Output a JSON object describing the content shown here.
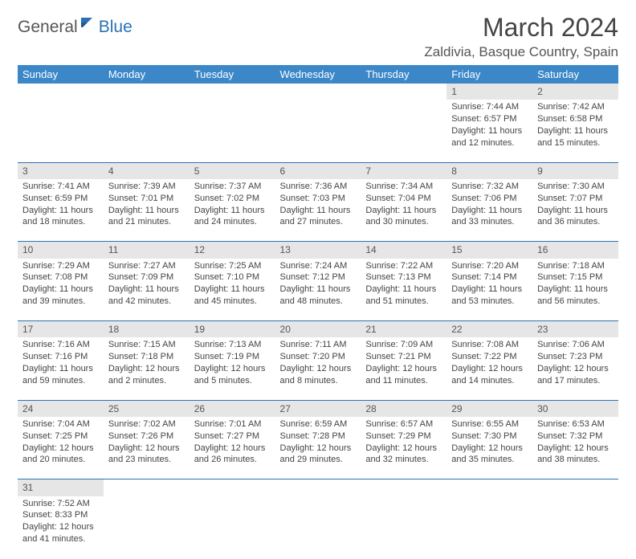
{
  "logo": {
    "part1": "General",
    "part2": "Blue"
  },
  "title": "March 2024",
  "location": "Zaldivia, Basque Country, Spain",
  "day_headers": [
    "Sunday",
    "Monday",
    "Tuesday",
    "Wednesday",
    "Thursday",
    "Friday",
    "Saturday"
  ],
  "colors": {
    "header_bg": "#3b87c8",
    "header_text": "#ffffff",
    "daynum_bg": "#e6e6e6",
    "border": "#2a72b5",
    "text": "#444444"
  },
  "weeks": [
    [
      null,
      null,
      null,
      null,
      null,
      {
        "n": "1",
        "sr": "Sunrise: 7:44 AM",
        "ss": "Sunset: 6:57 PM",
        "dl1": "Daylight: 11 hours",
        "dl2": "and 12 minutes."
      },
      {
        "n": "2",
        "sr": "Sunrise: 7:42 AM",
        "ss": "Sunset: 6:58 PM",
        "dl1": "Daylight: 11 hours",
        "dl2": "and 15 minutes."
      }
    ],
    [
      {
        "n": "3",
        "sr": "Sunrise: 7:41 AM",
        "ss": "Sunset: 6:59 PM",
        "dl1": "Daylight: 11 hours",
        "dl2": "and 18 minutes."
      },
      {
        "n": "4",
        "sr": "Sunrise: 7:39 AM",
        "ss": "Sunset: 7:01 PM",
        "dl1": "Daylight: 11 hours",
        "dl2": "and 21 minutes."
      },
      {
        "n": "5",
        "sr": "Sunrise: 7:37 AM",
        "ss": "Sunset: 7:02 PM",
        "dl1": "Daylight: 11 hours",
        "dl2": "and 24 minutes."
      },
      {
        "n": "6",
        "sr": "Sunrise: 7:36 AM",
        "ss": "Sunset: 7:03 PM",
        "dl1": "Daylight: 11 hours",
        "dl2": "and 27 minutes."
      },
      {
        "n": "7",
        "sr": "Sunrise: 7:34 AM",
        "ss": "Sunset: 7:04 PM",
        "dl1": "Daylight: 11 hours",
        "dl2": "and 30 minutes."
      },
      {
        "n": "8",
        "sr": "Sunrise: 7:32 AM",
        "ss": "Sunset: 7:06 PM",
        "dl1": "Daylight: 11 hours",
        "dl2": "and 33 minutes."
      },
      {
        "n": "9",
        "sr": "Sunrise: 7:30 AM",
        "ss": "Sunset: 7:07 PM",
        "dl1": "Daylight: 11 hours",
        "dl2": "and 36 minutes."
      }
    ],
    [
      {
        "n": "10",
        "sr": "Sunrise: 7:29 AM",
        "ss": "Sunset: 7:08 PM",
        "dl1": "Daylight: 11 hours",
        "dl2": "and 39 minutes."
      },
      {
        "n": "11",
        "sr": "Sunrise: 7:27 AM",
        "ss": "Sunset: 7:09 PM",
        "dl1": "Daylight: 11 hours",
        "dl2": "and 42 minutes."
      },
      {
        "n": "12",
        "sr": "Sunrise: 7:25 AM",
        "ss": "Sunset: 7:10 PM",
        "dl1": "Daylight: 11 hours",
        "dl2": "and 45 minutes."
      },
      {
        "n": "13",
        "sr": "Sunrise: 7:24 AM",
        "ss": "Sunset: 7:12 PM",
        "dl1": "Daylight: 11 hours",
        "dl2": "and 48 minutes."
      },
      {
        "n": "14",
        "sr": "Sunrise: 7:22 AM",
        "ss": "Sunset: 7:13 PM",
        "dl1": "Daylight: 11 hours",
        "dl2": "and 51 minutes."
      },
      {
        "n": "15",
        "sr": "Sunrise: 7:20 AM",
        "ss": "Sunset: 7:14 PM",
        "dl1": "Daylight: 11 hours",
        "dl2": "and 53 minutes."
      },
      {
        "n": "16",
        "sr": "Sunrise: 7:18 AM",
        "ss": "Sunset: 7:15 PM",
        "dl1": "Daylight: 11 hours",
        "dl2": "and 56 minutes."
      }
    ],
    [
      {
        "n": "17",
        "sr": "Sunrise: 7:16 AM",
        "ss": "Sunset: 7:16 PM",
        "dl1": "Daylight: 11 hours",
        "dl2": "and 59 minutes."
      },
      {
        "n": "18",
        "sr": "Sunrise: 7:15 AM",
        "ss": "Sunset: 7:18 PM",
        "dl1": "Daylight: 12 hours",
        "dl2": "and 2 minutes."
      },
      {
        "n": "19",
        "sr": "Sunrise: 7:13 AM",
        "ss": "Sunset: 7:19 PM",
        "dl1": "Daylight: 12 hours",
        "dl2": "and 5 minutes."
      },
      {
        "n": "20",
        "sr": "Sunrise: 7:11 AM",
        "ss": "Sunset: 7:20 PM",
        "dl1": "Daylight: 12 hours",
        "dl2": "and 8 minutes."
      },
      {
        "n": "21",
        "sr": "Sunrise: 7:09 AM",
        "ss": "Sunset: 7:21 PM",
        "dl1": "Daylight: 12 hours",
        "dl2": "and 11 minutes."
      },
      {
        "n": "22",
        "sr": "Sunrise: 7:08 AM",
        "ss": "Sunset: 7:22 PM",
        "dl1": "Daylight: 12 hours",
        "dl2": "and 14 minutes."
      },
      {
        "n": "23",
        "sr": "Sunrise: 7:06 AM",
        "ss": "Sunset: 7:23 PM",
        "dl1": "Daylight: 12 hours",
        "dl2": "and 17 minutes."
      }
    ],
    [
      {
        "n": "24",
        "sr": "Sunrise: 7:04 AM",
        "ss": "Sunset: 7:25 PM",
        "dl1": "Daylight: 12 hours",
        "dl2": "and 20 minutes."
      },
      {
        "n": "25",
        "sr": "Sunrise: 7:02 AM",
        "ss": "Sunset: 7:26 PM",
        "dl1": "Daylight: 12 hours",
        "dl2": "and 23 minutes."
      },
      {
        "n": "26",
        "sr": "Sunrise: 7:01 AM",
        "ss": "Sunset: 7:27 PM",
        "dl1": "Daylight: 12 hours",
        "dl2": "and 26 minutes."
      },
      {
        "n": "27",
        "sr": "Sunrise: 6:59 AM",
        "ss": "Sunset: 7:28 PM",
        "dl1": "Daylight: 12 hours",
        "dl2": "and 29 minutes."
      },
      {
        "n": "28",
        "sr": "Sunrise: 6:57 AM",
        "ss": "Sunset: 7:29 PM",
        "dl1": "Daylight: 12 hours",
        "dl2": "and 32 minutes."
      },
      {
        "n": "29",
        "sr": "Sunrise: 6:55 AM",
        "ss": "Sunset: 7:30 PM",
        "dl1": "Daylight: 12 hours",
        "dl2": "and 35 minutes."
      },
      {
        "n": "30",
        "sr": "Sunrise: 6:53 AM",
        "ss": "Sunset: 7:32 PM",
        "dl1": "Daylight: 12 hours",
        "dl2": "and 38 minutes."
      }
    ],
    [
      {
        "n": "31",
        "sr": "Sunrise: 7:52 AM",
        "ss": "Sunset: 8:33 PM",
        "dl1": "Daylight: 12 hours",
        "dl2": "and 41 minutes."
      },
      null,
      null,
      null,
      null,
      null,
      null
    ]
  ]
}
